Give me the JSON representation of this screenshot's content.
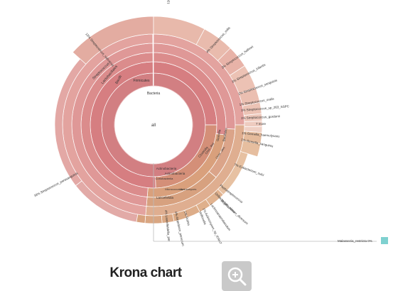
{
  "caption": "Krona chart",
  "chart_data": {
    "type": "sunburst",
    "root_label": "all",
    "labels": {
      "bacteria": "Bacteria",
      "firmicutes": "Firmicutes",
      "bacilli": "Bacilli",
      "lactobacillales": "Lactobacillales",
      "streptococcaceae": "Streptococcus",
      "actinobacteria_phylum": "Actinobacteria",
      "actinobacteria_class": "Actinobacteria",
      "clostridia": "Clostridia",
      "coriobacteriia": "Coriobacteriia",
      "micrococcales": "Micrococcales",
      "gemella": "Gemella",
      "bacillales": "Bacillales",
      "clost_family": "Clost...fied",
      "clost_order": "Clost...ales",
      "lanceofieldia": "Lancefieldia",
      "actinomyces": "Actinomyces"
    },
    "leaves": [
      {
        "pct": "13%",
        "name": "Streptococcus_salivarius"
      },
      {
        "pct": "13%",
        "name": "Streptococcus_s"
      },
      {
        "pct": "4%",
        "name": "Streptococcus_mitis"
      },
      {
        "pct": "3%",
        "name": "Streptococcus_halhnei"
      },
      {
        "pct": "3%",
        "name": "Streptococcus_infantis"
      },
      {
        "pct": "2%",
        "name": "Streptococcus_sanguinis"
      },
      {
        "pct": "1%",
        "name": "Streptococcus_oralis"
      },
      {
        "pct": "1%",
        "name": "Streptococcus_sp_263_SSPC"
      },
      {
        "pct": "1%",
        "name": "Streptococcus_gordonii"
      },
      {
        "pct": "",
        "name": "7 more"
      },
      {
        "pct": "1%",
        "name": "Gemella_haemolysans"
      },
      {
        "pct": "1%",
        "name": "Gemella_sanguinis"
      },
      {
        "pct": "7%",
        "name": "Eubacterium_sulci"
      },
      {
        "pct": "",
        "name": "Peptostreptococcus"
      },
      {
        "pct": "",
        "name": "Oribacterium_sinus"
      },
      {
        "pct": "",
        "name": "Mogibacterium_diversum"
      },
      {
        "pct": "",
        "name": "Lachnoanaerobaculum"
      },
      {
        "pct": "1%",
        "name": "Actinomyces_sp_ICM47"
      },
      {
        "pct": "",
        "name": "Veillonella"
      },
      {
        "pct": "1%",
        "name": "Rothia"
      },
      {
        "pct": "4%",
        "name": "Atopobium_parvulum"
      },
      {
        "pct": "4%",
        "name": "Lancefieldella_par"
      },
      {
        "pct": "33%",
        "name": "Streptococcus_parasanguinis"
      }
    ],
    "more_note": "7 more",
    "fungi": {
      "label": "Malassezia_restricta",
      "pct": "0%"
    },
    "colors": {
      "root": "#ffffff",
      "firmicutes_ring": "#d27f82",
      "streptococcus": "#e6a9a4",
      "green_side": "#d9a17e",
      "fungi": "#7fd1d0"
    }
  }
}
